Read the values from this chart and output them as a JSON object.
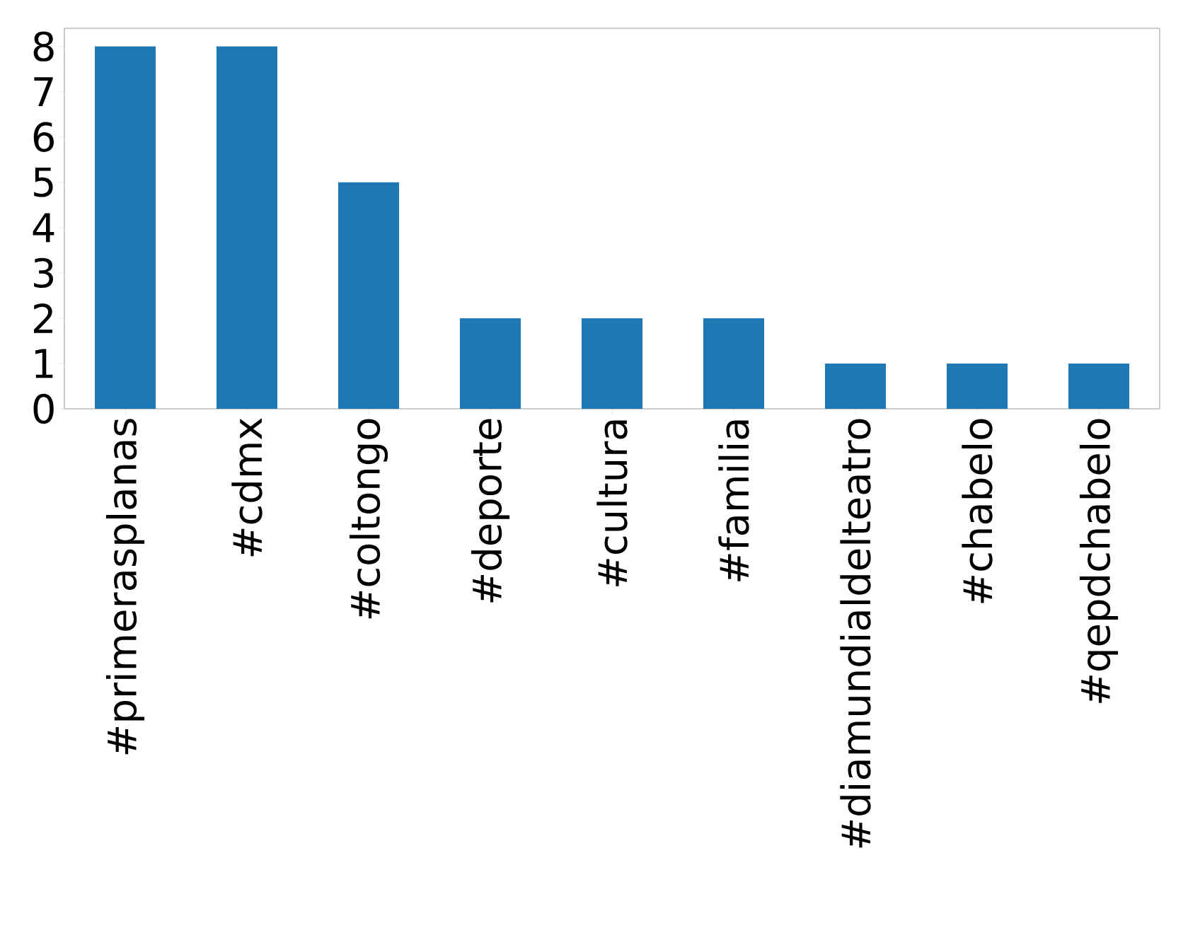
{
  "chart_data": {
    "type": "bar",
    "categories": [
      "#primerasplanas",
      "#cdmx",
      "#coltongo",
      "#deporte",
      "#cultura",
      "#familia",
      "#diamundialdelteatro",
      "#chabelo",
      "#qepdchabelo"
    ],
    "values": [
      8,
      8,
      5,
      2,
      2,
      2,
      1,
      1,
      1
    ],
    "color": "#1f77b4",
    "ylim": [
      0,
      8.4
    ],
    "yticks": [
      0,
      1,
      2,
      3,
      4,
      5,
      6,
      7,
      8
    ]
  }
}
